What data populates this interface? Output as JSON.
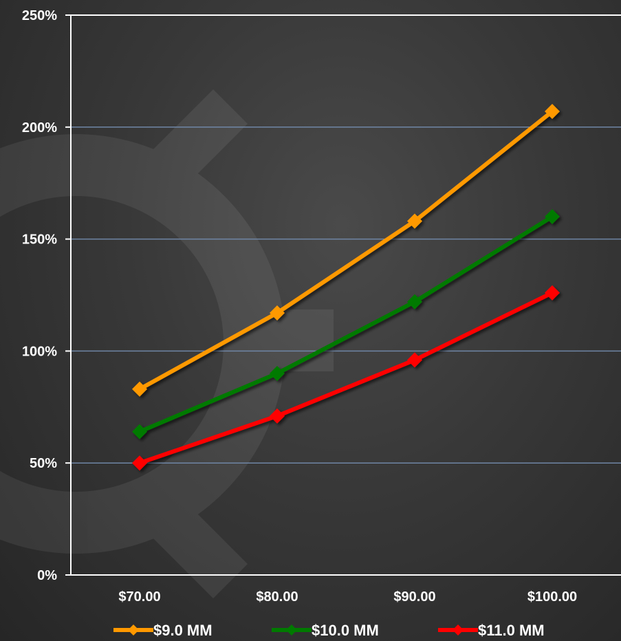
{
  "chart_data": {
    "type": "line",
    "categories": [
      "$70.00",
      "$80.00",
      "$90.00",
      "$100.00"
    ],
    "series": [
      {
        "name": "$9.0 MM",
        "color": "#FF9900",
        "values": [
          83,
          117,
          158,
          207
        ]
      },
      {
        "name": "$10.0 MM",
        "color": "#007A00",
        "values": [
          64,
          90,
          122,
          160
        ]
      },
      {
        "name": "$11.0 MM",
        "color": "#FF0000",
        "values": [
          50,
          71,
          96,
          126
        ]
      }
    ],
    "ylim": [
      0,
      250
    ],
    "y_ticks": [
      0,
      50,
      100,
      150,
      200,
      250
    ],
    "y_tick_labels": [
      "0%",
      "50%",
      "100%",
      "150%",
      "200%",
      "250%"
    ],
    "grid": true,
    "legend_position": "bottom",
    "marker": "diamond",
    "colors": {
      "gridline": "#6F86A6",
      "axis": "#FFFFFF",
      "text": "#FFFFFF"
    }
  }
}
